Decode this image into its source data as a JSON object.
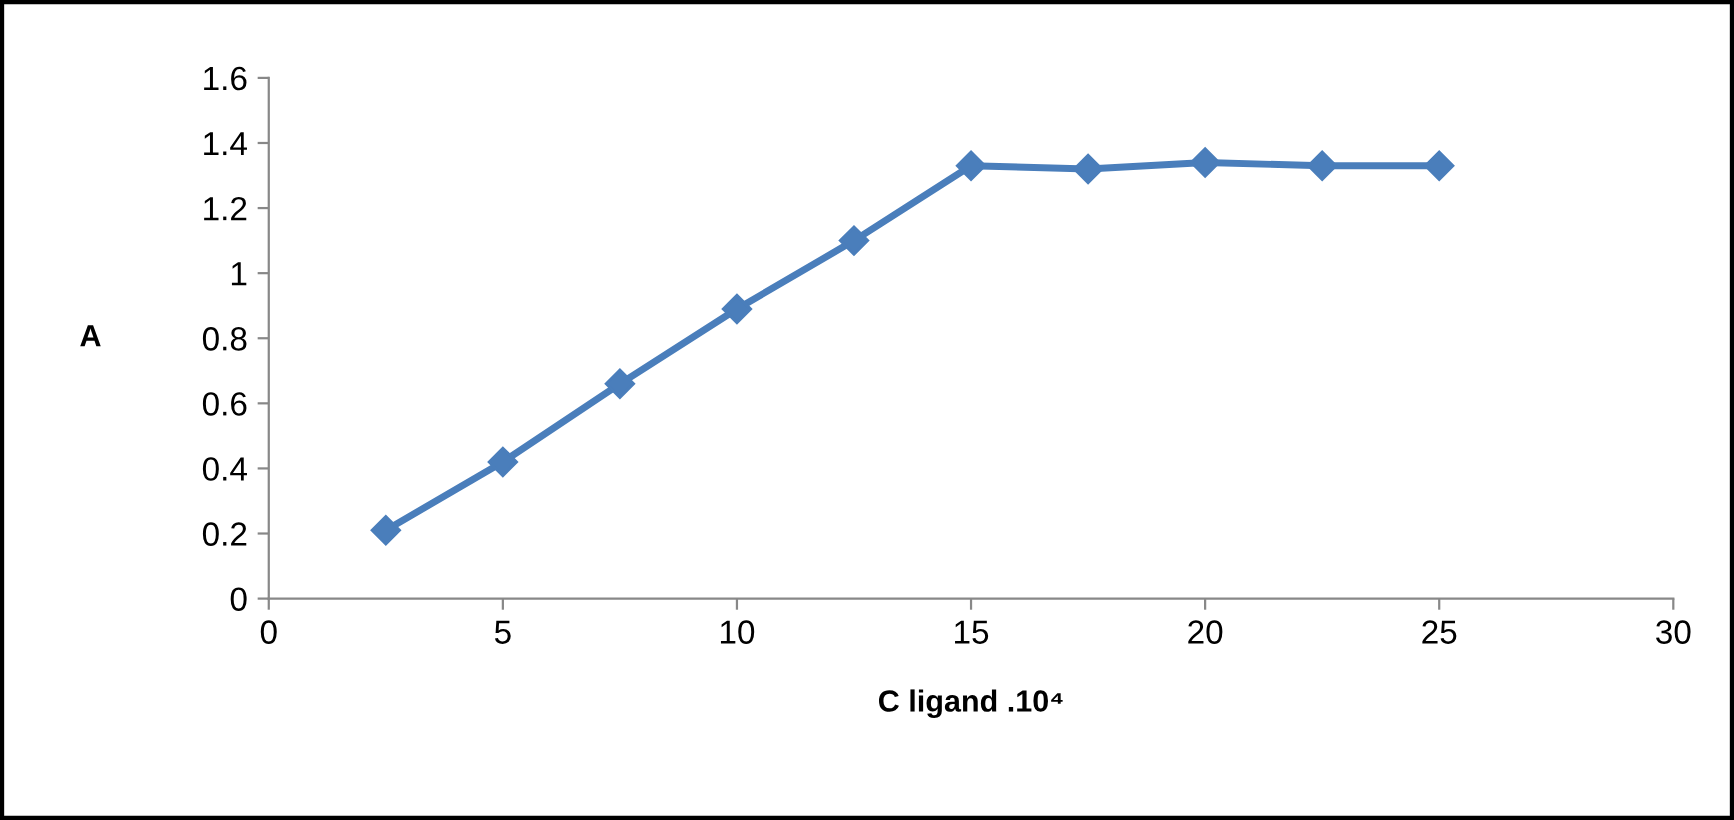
{
  "chart_data": {
    "type": "line",
    "xlabel": "C ligand .10⁴",
    "ylabel": "A",
    "x": [
      2.5,
      5,
      7.5,
      10,
      12.5,
      15,
      17.5,
      20,
      22.5,
      25
    ],
    "series": [
      {
        "color": "#4a7ebb",
        "values": [
          0.21,
          0.42,
          0.66,
          0.89,
          1.1,
          1.33,
          1.32,
          1.34,
          1.33,
          1.33
        ]
      }
    ],
    "xlim": [
      0,
      30
    ],
    "xticks": [
      0,
      5,
      10,
      15,
      20,
      25,
      30
    ],
    "ylim": [
      0,
      1.6
    ],
    "yticks": [
      0,
      {
        "value": 0.2,
        "label": "0.2"
      },
      {
        "value": 0.4,
        "label": "0.4"
      },
      {
        "value": 0.6,
        "label": "0.6"
      },
      {
        "value": 0.8,
        "label": "0.8"
      },
      1,
      {
        "value": 1.2,
        "label": "1.2"
      },
      {
        "value": 1.4,
        "label": "1.4"
      },
      {
        "value": 1.6,
        "label": "1.6"
      }
    ],
    "grid": false,
    "legend": false,
    "marker": "diamond",
    "line_style": "solid"
  }
}
